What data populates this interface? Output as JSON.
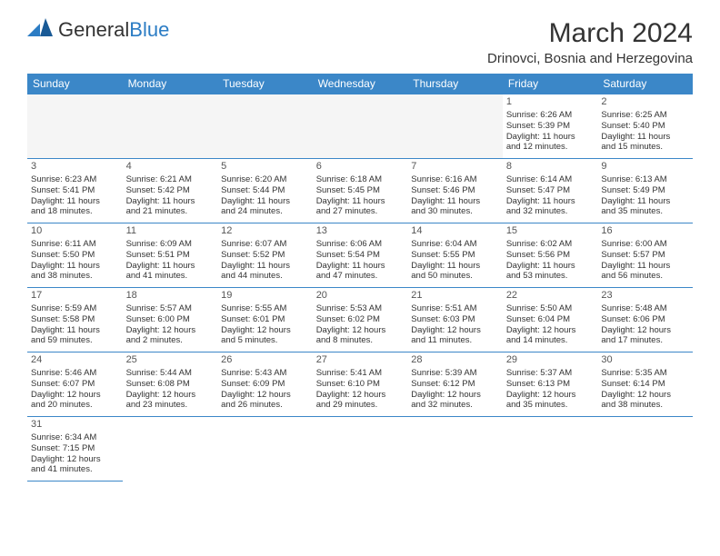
{
  "logo": {
    "text1": "General",
    "text2": "Blue"
  },
  "title": "March 2024",
  "location": "Drinovci, Bosnia and Herzegovina",
  "colors": {
    "headerBg": "#3b87c8",
    "headerFg": "#ffffff",
    "border": "#3b87c8",
    "logoBlue": "#2b7cc4"
  },
  "dayHeaders": [
    "Sunday",
    "Monday",
    "Tuesday",
    "Wednesday",
    "Thursday",
    "Friday",
    "Saturday"
  ],
  "weeks": [
    [
      null,
      null,
      null,
      null,
      null,
      {
        "n": "1",
        "sr": "Sunrise: 6:26 AM",
        "ss": "Sunset: 5:39 PM",
        "d1": "Daylight: 11 hours",
        "d2": "and 12 minutes."
      },
      {
        "n": "2",
        "sr": "Sunrise: 6:25 AM",
        "ss": "Sunset: 5:40 PM",
        "d1": "Daylight: 11 hours",
        "d2": "and 15 minutes."
      }
    ],
    [
      {
        "n": "3",
        "sr": "Sunrise: 6:23 AM",
        "ss": "Sunset: 5:41 PM",
        "d1": "Daylight: 11 hours",
        "d2": "and 18 minutes."
      },
      {
        "n": "4",
        "sr": "Sunrise: 6:21 AM",
        "ss": "Sunset: 5:42 PM",
        "d1": "Daylight: 11 hours",
        "d2": "and 21 minutes."
      },
      {
        "n": "5",
        "sr": "Sunrise: 6:20 AM",
        "ss": "Sunset: 5:44 PM",
        "d1": "Daylight: 11 hours",
        "d2": "and 24 minutes."
      },
      {
        "n": "6",
        "sr": "Sunrise: 6:18 AM",
        "ss": "Sunset: 5:45 PM",
        "d1": "Daylight: 11 hours",
        "d2": "and 27 minutes."
      },
      {
        "n": "7",
        "sr": "Sunrise: 6:16 AM",
        "ss": "Sunset: 5:46 PM",
        "d1": "Daylight: 11 hours",
        "d2": "and 30 minutes."
      },
      {
        "n": "8",
        "sr": "Sunrise: 6:14 AM",
        "ss": "Sunset: 5:47 PM",
        "d1": "Daylight: 11 hours",
        "d2": "and 32 minutes."
      },
      {
        "n": "9",
        "sr": "Sunrise: 6:13 AM",
        "ss": "Sunset: 5:49 PM",
        "d1": "Daylight: 11 hours",
        "d2": "and 35 minutes."
      }
    ],
    [
      {
        "n": "10",
        "sr": "Sunrise: 6:11 AM",
        "ss": "Sunset: 5:50 PM",
        "d1": "Daylight: 11 hours",
        "d2": "and 38 minutes."
      },
      {
        "n": "11",
        "sr": "Sunrise: 6:09 AM",
        "ss": "Sunset: 5:51 PM",
        "d1": "Daylight: 11 hours",
        "d2": "and 41 minutes."
      },
      {
        "n": "12",
        "sr": "Sunrise: 6:07 AM",
        "ss": "Sunset: 5:52 PM",
        "d1": "Daylight: 11 hours",
        "d2": "and 44 minutes."
      },
      {
        "n": "13",
        "sr": "Sunrise: 6:06 AM",
        "ss": "Sunset: 5:54 PM",
        "d1": "Daylight: 11 hours",
        "d2": "and 47 minutes."
      },
      {
        "n": "14",
        "sr": "Sunrise: 6:04 AM",
        "ss": "Sunset: 5:55 PM",
        "d1": "Daylight: 11 hours",
        "d2": "and 50 minutes."
      },
      {
        "n": "15",
        "sr": "Sunrise: 6:02 AM",
        "ss": "Sunset: 5:56 PM",
        "d1": "Daylight: 11 hours",
        "d2": "and 53 minutes."
      },
      {
        "n": "16",
        "sr": "Sunrise: 6:00 AM",
        "ss": "Sunset: 5:57 PM",
        "d1": "Daylight: 11 hours",
        "d2": "and 56 minutes."
      }
    ],
    [
      {
        "n": "17",
        "sr": "Sunrise: 5:59 AM",
        "ss": "Sunset: 5:58 PM",
        "d1": "Daylight: 11 hours",
        "d2": "and 59 minutes."
      },
      {
        "n": "18",
        "sr": "Sunrise: 5:57 AM",
        "ss": "Sunset: 6:00 PM",
        "d1": "Daylight: 12 hours",
        "d2": "and 2 minutes."
      },
      {
        "n": "19",
        "sr": "Sunrise: 5:55 AM",
        "ss": "Sunset: 6:01 PM",
        "d1": "Daylight: 12 hours",
        "d2": "and 5 minutes."
      },
      {
        "n": "20",
        "sr": "Sunrise: 5:53 AM",
        "ss": "Sunset: 6:02 PM",
        "d1": "Daylight: 12 hours",
        "d2": "and 8 minutes."
      },
      {
        "n": "21",
        "sr": "Sunrise: 5:51 AM",
        "ss": "Sunset: 6:03 PM",
        "d1": "Daylight: 12 hours",
        "d2": "and 11 minutes."
      },
      {
        "n": "22",
        "sr": "Sunrise: 5:50 AM",
        "ss": "Sunset: 6:04 PM",
        "d1": "Daylight: 12 hours",
        "d2": "and 14 minutes."
      },
      {
        "n": "23",
        "sr": "Sunrise: 5:48 AM",
        "ss": "Sunset: 6:06 PM",
        "d1": "Daylight: 12 hours",
        "d2": "and 17 minutes."
      }
    ],
    [
      {
        "n": "24",
        "sr": "Sunrise: 5:46 AM",
        "ss": "Sunset: 6:07 PM",
        "d1": "Daylight: 12 hours",
        "d2": "and 20 minutes."
      },
      {
        "n": "25",
        "sr": "Sunrise: 5:44 AM",
        "ss": "Sunset: 6:08 PM",
        "d1": "Daylight: 12 hours",
        "d2": "and 23 minutes."
      },
      {
        "n": "26",
        "sr": "Sunrise: 5:43 AM",
        "ss": "Sunset: 6:09 PM",
        "d1": "Daylight: 12 hours",
        "d2": "and 26 minutes."
      },
      {
        "n": "27",
        "sr": "Sunrise: 5:41 AM",
        "ss": "Sunset: 6:10 PM",
        "d1": "Daylight: 12 hours",
        "d2": "and 29 minutes."
      },
      {
        "n": "28",
        "sr": "Sunrise: 5:39 AM",
        "ss": "Sunset: 6:12 PM",
        "d1": "Daylight: 12 hours",
        "d2": "and 32 minutes."
      },
      {
        "n": "29",
        "sr": "Sunrise: 5:37 AM",
        "ss": "Sunset: 6:13 PM",
        "d1": "Daylight: 12 hours",
        "d2": "and 35 minutes."
      },
      {
        "n": "30",
        "sr": "Sunrise: 5:35 AM",
        "ss": "Sunset: 6:14 PM",
        "d1": "Daylight: 12 hours",
        "d2": "and 38 minutes."
      }
    ],
    [
      {
        "n": "31",
        "sr": "Sunrise: 6:34 AM",
        "ss": "Sunset: 7:15 PM",
        "d1": "Daylight: 12 hours",
        "d2": "and 41 minutes."
      },
      null,
      null,
      null,
      null,
      null,
      null
    ]
  ]
}
